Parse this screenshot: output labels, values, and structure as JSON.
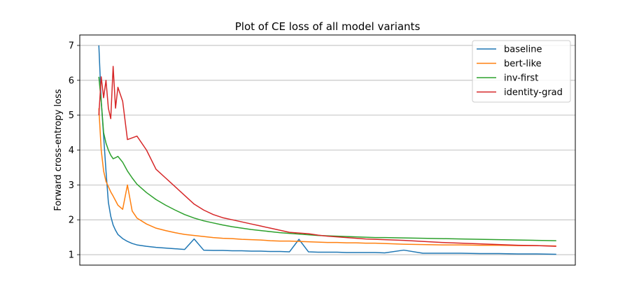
{
  "chart_data": {
    "type": "line",
    "title": "Plot of CE loss of all model variants",
    "xlabel": "",
    "ylabel": "Forward cross-entropy loss",
    "xlim": [
      -2,
      50
    ],
    "ylim": [
      0.7,
      7.3
    ],
    "yticks": [
      "1",
      "2",
      "3",
      "4",
      "5",
      "6",
      "7"
    ],
    "grid": "horizontal",
    "legend_position": "upper right",
    "x": [
      0,
      0.25,
      0.5,
      0.75,
      1,
      1.25,
      1.5,
      1.75,
      2,
      2.5,
      3,
      3.5,
      4,
      5,
      6,
      7,
      8,
      9,
      10,
      11,
      12,
      13,
      14,
      15,
      16,
      17,
      18,
      19,
      20,
      21,
      22,
      23,
      24,
      25,
      26,
      27,
      28,
      29,
      30,
      32,
      34,
      36,
      38,
      40,
      42,
      44,
      46,
      48
    ],
    "series": [
      {
        "name": "baseline",
        "color": "#1f77b4",
        "values": [
          7.0,
          5.4,
          4.4,
          3.4,
          2.5,
          2.1,
          1.85,
          1.7,
          1.58,
          1.46,
          1.38,
          1.32,
          1.28,
          1.24,
          1.21,
          1.19,
          1.17,
          1.15,
          1.45,
          1.13,
          1.12,
          1.12,
          1.11,
          1.11,
          1.1,
          1.1,
          1.09,
          1.09,
          1.08,
          1.44,
          1.08,
          1.07,
          1.07,
          1.07,
          1.06,
          1.06,
          1.06,
          1.06,
          1.05,
          1.13,
          1.04,
          1.04,
          1.04,
          1.03,
          1.03,
          1.02,
          1.02,
          1.01
        ]
      },
      {
        "name": "bert-like",
        "color": "#ff7f0e",
        "values": [
          5.2,
          4.0,
          3.4,
          3.1,
          2.95,
          2.8,
          2.68,
          2.55,
          2.42,
          2.3,
          3.0,
          2.25,
          2.05,
          1.88,
          1.76,
          1.69,
          1.63,
          1.58,
          1.55,
          1.52,
          1.49,
          1.47,
          1.46,
          1.44,
          1.43,
          1.42,
          1.4,
          1.39,
          1.39,
          1.38,
          1.37,
          1.36,
          1.35,
          1.35,
          1.34,
          1.34,
          1.33,
          1.33,
          1.32,
          1.3,
          1.29,
          1.28,
          1.28,
          1.27,
          1.27,
          1.26,
          1.26,
          1.25
        ]
      },
      {
        "name": "inv-first",
        "color": "#2ca02c",
        "values": [
          6.1,
          5.4,
          4.5,
          4.2,
          4.0,
          3.85,
          3.75,
          3.78,
          3.82,
          3.65,
          3.4,
          3.2,
          3.02,
          2.78,
          2.58,
          2.42,
          2.28,
          2.15,
          2.05,
          1.97,
          1.91,
          1.85,
          1.8,
          1.76,
          1.72,
          1.69,
          1.66,
          1.63,
          1.61,
          1.59,
          1.57,
          1.55,
          1.54,
          1.53,
          1.52,
          1.51,
          1.5,
          1.49,
          1.49,
          1.48,
          1.47,
          1.46,
          1.45,
          1.44,
          1.43,
          1.42,
          1.41,
          1.4
        ]
      },
      {
        "name": "identity-grad",
        "color": "#d62728",
        "values": [
          5.0,
          6.1,
          5.5,
          6.0,
          5.2,
          4.9,
          6.4,
          5.2,
          5.8,
          5.4,
          4.3,
          4.35,
          4.4,
          4.0,
          3.45,
          3.2,
          2.95,
          2.7,
          2.45,
          2.28,
          2.15,
          2.06,
          2.0,
          1.94,
          1.88,
          1.82,
          1.76,
          1.7,
          1.64,
          1.62,
          1.6,
          1.56,
          1.53,
          1.51,
          1.49,
          1.47,
          1.45,
          1.44,
          1.43,
          1.41,
          1.38,
          1.35,
          1.33,
          1.31,
          1.29,
          1.27,
          1.26,
          1.24
        ]
      }
    ]
  }
}
